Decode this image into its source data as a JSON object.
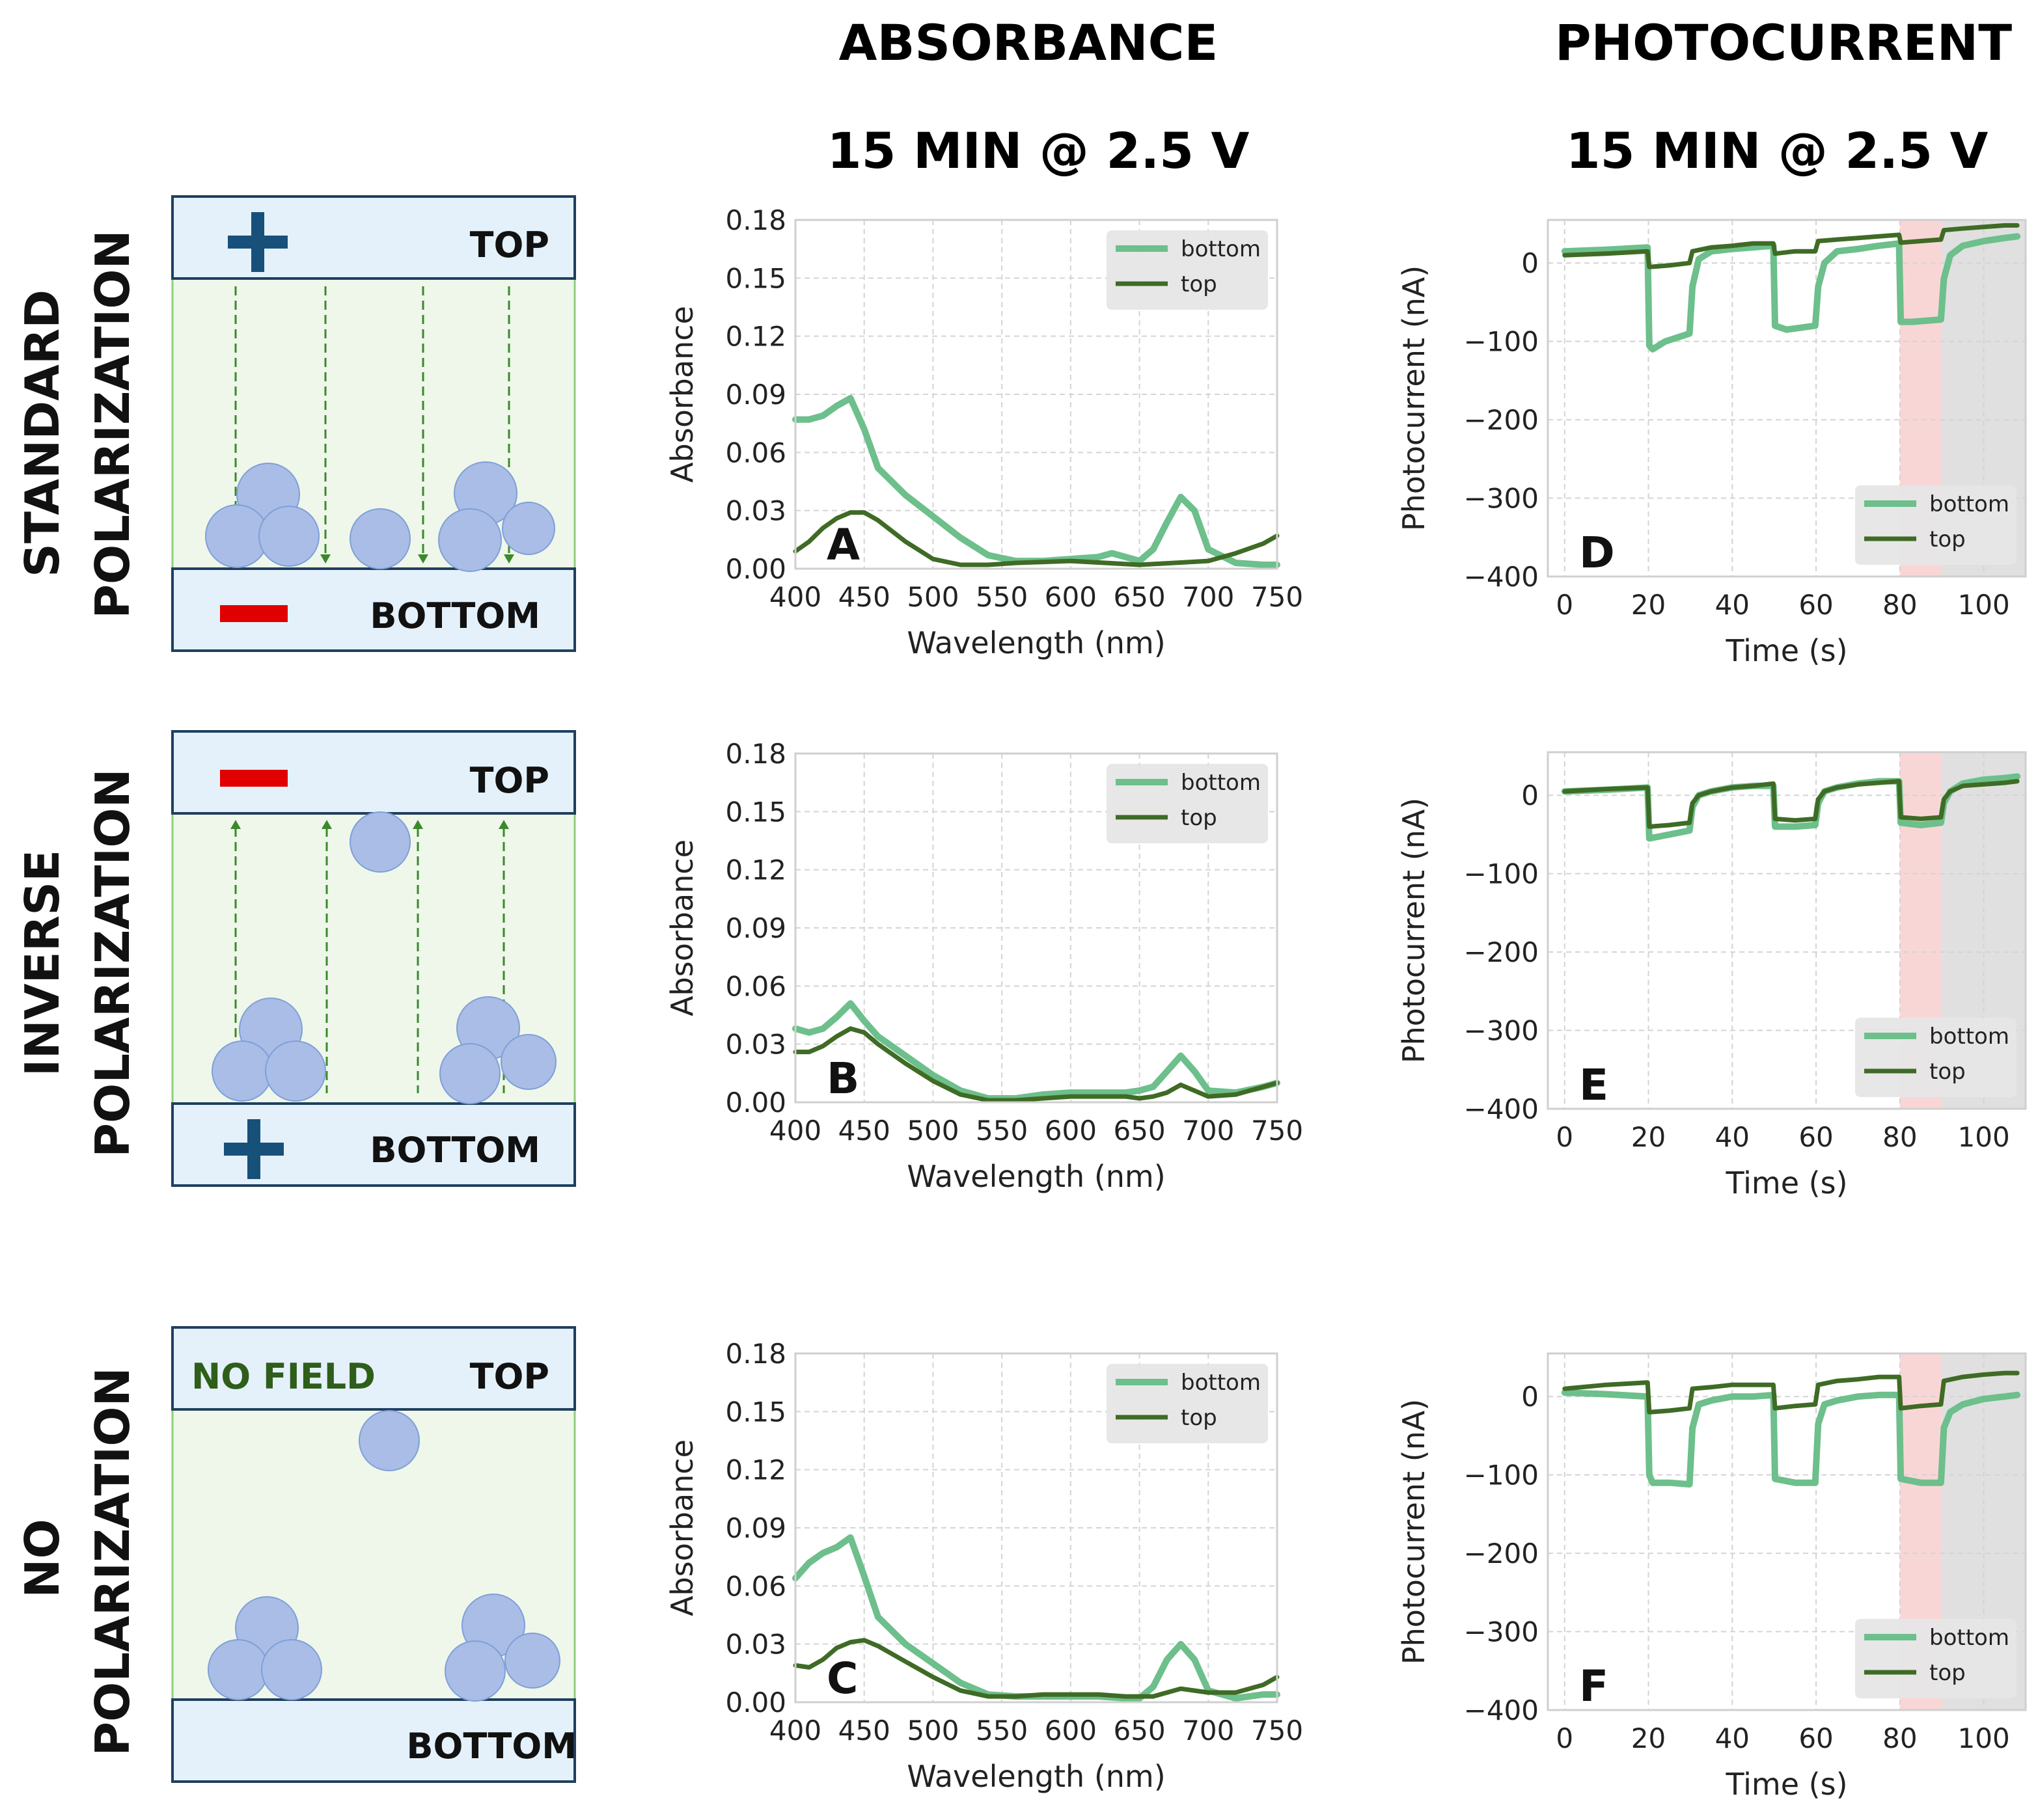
{
  "column_headers": {
    "absorbance_title": "ABSORBANCE",
    "absorbance_sub": "15 MIN @ 2.5 V",
    "photocurrent_title": "PHOTOCURRENT",
    "photocurrent_sub": "15 MIN @ 2.5 V"
  },
  "rows": [
    {
      "label_line1": "STANDARD",
      "label_line2": "POLARIZATION",
      "top_label": "TOP",
      "bottom_label": "BOTTOM",
      "top_sign": "+",
      "bottom_sign": "−",
      "field_direction": "down",
      "no_field_label": ""
    },
    {
      "label_line1": "INVERSE",
      "label_line2": "POLARIZATION",
      "top_label": "TOP",
      "bottom_label": "BOTTOM",
      "top_sign": "−",
      "bottom_sign": "+",
      "field_direction": "up",
      "no_field_label": ""
    },
    {
      "label_line1": "NO",
      "label_line2": "POLARIZATION",
      "top_label": "TOP",
      "bottom_label": "BOTTOM",
      "top_sign": "",
      "bottom_sign": "",
      "field_direction": "none",
      "no_field_label": "NO FIELD"
    }
  ],
  "colors": {
    "bottom_series": "#6dbf8b",
    "top_series": "#3f6b25",
    "schematic_fill": "#eef7ea",
    "electrode_fill": "#e4f1fa",
    "plus_sign": "#17517a",
    "minus_sign": "#e00000",
    "no_field_text": "#2e5e1a",
    "light_window": "#f9d6d6",
    "dark_window": "#e0e0e0"
  },
  "chart_data": [
    {
      "id": "A",
      "type": "line",
      "panel_letter": "A",
      "xlabel": "Wavelength (nm)",
      "ylabel": "Absorbance",
      "xlim": [
        400,
        750
      ],
      "ylim": [
        0,
        0.18
      ],
      "xticks": [
        400,
        450,
        500,
        550,
        600,
        650,
        700,
        750
      ],
      "yticks": [
        0.0,
        0.03,
        0.06,
        0.09,
        0.12,
        0.15,
        0.18
      ],
      "ytick_labels": [
        "0.00",
        "0.03",
        "0.06",
        "0.09",
        "0.12",
        "0.15",
        "0.18"
      ],
      "legend": {
        "position": "top-right",
        "entries": [
          "bottom",
          "top"
        ]
      },
      "series": [
        {
          "name": "bottom",
          "x": [
            400,
            410,
            420,
            430,
            440,
            450,
            460,
            480,
            500,
            520,
            540,
            560,
            580,
            600,
            620,
            630,
            640,
            650,
            660,
            670,
            680,
            690,
            700,
            720,
            740,
            750
          ],
          "y": [
            0.077,
            0.077,
            0.079,
            0.084,
            0.088,
            0.072,
            0.052,
            0.038,
            0.027,
            0.016,
            0.007,
            0.004,
            0.004,
            0.005,
            0.006,
            0.008,
            0.006,
            0.004,
            0.01,
            0.024,
            0.037,
            0.03,
            0.01,
            0.003,
            0.002,
            0.002
          ]
        },
        {
          "name": "top",
          "x": [
            400,
            410,
            420,
            430,
            440,
            450,
            460,
            480,
            500,
            520,
            540,
            560,
            600,
            650,
            700,
            720,
            740,
            750
          ],
          "y": [
            0.009,
            0.014,
            0.021,
            0.026,
            0.029,
            0.029,
            0.025,
            0.014,
            0.005,
            0.002,
            0.002,
            0.003,
            0.004,
            0.002,
            0.004,
            0.008,
            0.013,
            0.017
          ]
        }
      ]
    },
    {
      "id": "B",
      "type": "line",
      "panel_letter": "B",
      "xlabel": "Wavelength (nm)",
      "ylabel": "Absorbance",
      "xlim": [
        400,
        750
      ],
      "ylim": [
        0,
        0.18
      ],
      "xticks": [
        400,
        450,
        500,
        550,
        600,
        650,
        700,
        750
      ],
      "yticks": [
        0.0,
        0.03,
        0.06,
        0.09,
        0.12,
        0.15,
        0.18
      ],
      "ytick_labels": [
        "0.00",
        "0.03",
        "0.06",
        "0.09",
        "0.12",
        "0.15",
        "0.18"
      ],
      "legend": {
        "position": "top-right",
        "entries": [
          "bottom",
          "top"
        ]
      },
      "series": [
        {
          "name": "bottom",
          "x": [
            400,
            410,
            420,
            430,
            440,
            450,
            460,
            480,
            500,
            520,
            540,
            560,
            580,
            600,
            620,
            640,
            650,
            660,
            670,
            680,
            690,
            700,
            720,
            740,
            750
          ],
          "y": [
            0.038,
            0.036,
            0.038,
            0.044,
            0.051,
            0.042,
            0.034,
            0.024,
            0.014,
            0.006,
            0.002,
            0.002,
            0.004,
            0.005,
            0.005,
            0.005,
            0.006,
            0.008,
            0.016,
            0.024,
            0.016,
            0.006,
            0.005,
            0.008,
            0.01
          ]
        },
        {
          "name": "top",
          "x": [
            400,
            410,
            420,
            430,
            440,
            450,
            460,
            480,
            500,
            520,
            540,
            560,
            580,
            600,
            620,
            640,
            650,
            660,
            670,
            680,
            690,
            700,
            720,
            740,
            750
          ],
          "y": [
            0.026,
            0.026,
            0.029,
            0.034,
            0.038,
            0.036,
            0.03,
            0.02,
            0.011,
            0.004,
            0.001,
            0.001,
            0.002,
            0.003,
            0.003,
            0.003,
            0.002,
            0.003,
            0.005,
            0.009,
            0.006,
            0.003,
            0.004,
            0.008,
            0.01
          ]
        }
      ]
    },
    {
      "id": "C",
      "type": "line",
      "panel_letter": "C",
      "xlabel": "Wavelength (nm)",
      "ylabel": "Absorbance",
      "xlim": [
        400,
        750
      ],
      "ylim": [
        0,
        0.18
      ],
      "xticks": [
        400,
        450,
        500,
        550,
        600,
        650,
        700,
        750
      ],
      "yticks": [
        0.0,
        0.03,
        0.06,
        0.09,
        0.12,
        0.15,
        0.18
      ],
      "ytick_labels": [
        "0.00",
        "0.03",
        "0.06",
        "0.09",
        "0.12",
        "0.15",
        "0.18"
      ],
      "legend": {
        "position": "top-right",
        "entries": [
          "bottom",
          "top"
        ]
      },
      "series": [
        {
          "name": "bottom",
          "x": [
            400,
            410,
            420,
            430,
            440,
            450,
            460,
            480,
            500,
            520,
            540,
            560,
            580,
            600,
            620,
            640,
            650,
            660,
            670,
            680,
            690,
            700,
            720,
            740,
            750
          ],
          "y": [
            0.064,
            0.072,
            0.077,
            0.08,
            0.085,
            0.065,
            0.044,
            0.03,
            0.02,
            0.01,
            0.004,
            0.003,
            0.003,
            0.003,
            0.003,
            0.002,
            0.002,
            0.008,
            0.022,
            0.03,
            0.022,
            0.006,
            0.002,
            0.004,
            0.004
          ]
        },
        {
          "name": "top",
          "x": [
            400,
            410,
            420,
            430,
            440,
            450,
            460,
            480,
            500,
            520,
            540,
            560,
            580,
            600,
            620,
            640,
            650,
            660,
            670,
            680,
            690,
            700,
            720,
            740,
            750
          ],
          "y": [
            0.019,
            0.018,
            0.022,
            0.028,
            0.031,
            0.032,
            0.029,
            0.021,
            0.013,
            0.006,
            0.003,
            0.003,
            0.004,
            0.004,
            0.004,
            0.003,
            0.003,
            0.003,
            0.005,
            0.007,
            0.006,
            0.005,
            0.005,
            0.009,
            0.013
          ]
        }
      ]
    },
    {
      "id": "D",
      "type": "line",
      "panel_letter": "D",
      "xlabel": "Time (s)",
      "ylabel": "Photocurrent (nA)",
      "xlim": [
        -4,
        110
      ],
      "ylim": [
        -400,
        55
      ],
      "xticks": [
        0,
        20,
        40,
        60,
        80,
        100
      ],
      "yticks": [
        -400,
        -300,
        -200,
        -100,
        0
      ],
      "ytick_labels": [
        "−400",
        "−300",
        "−200",
        "−100",
        "0"
      ],
      "shaded": [
        {
          "x0": 80,
          "x1": 90,
          "kind": "light"
        },
        {
          "x0": 90,
          "x1": 110,
          "kind": "dark"
        }
      ],
      "legend": {
        "position": "bottom-right",
        "entries": [
          "bottom",
          "top"
        ]
      },
      "series": [
        {
          "name": "bottom",
          "x": [
            0,
            10,
            19.8,
            20.2,
            21,
            24,
            29.8,
            30.5,
            32,
            35,
            40,
            45,
            49.8,
            50.2,
            53,
            59.8,
            60.5,
            62,
            65,
            70,
            75,
            79.8,
            80.2,
            83,
            89.8,
            90.5,
            92,
            95,
            100,
            105,
            108
          ],
          "y": [
            15,
            17,
            20,
            -105,
            -110,
            -100,
            -90,
            -30,
            5,
            15,
            18,
            20,
            22,
            -80,
            -85,
            -80,
            -30,
            0,
            15,
            18,
            22,
            25,
            -75,
            -75,
            -72,
            -20,
            10,
            22,
            28,
            32,
            34
          ]
        },
        {
          "name": "top",
          "x": [
            0,
            10,
            19.8,
            20.2,
            25,
            29.8,
            30.5,
            35,
            40,
            45,
            49.8,
            50.2,
            55,
            59.8,
            60.5,
            65,
            70,
            75,
            79.8,
            80.2,
            85,
            89.8,
            90.5,
            95,
            100,
            105,
            108
          ],
          "y": [
            10,
            12,
            15,
            -5,
            -3,
            0,
            15,
            20,
            22,
            25,
            25,
            12,
            15,
            15,
            28,
            30,
            32,
            34,
            36,
            26,
            28,
            30,
            42,
            44,
            46,
            48,
            48
          ]
        }
      ]
    },
    {
      "id": "E",
      "type": "line",
      "panel_letter": "E",
      "xlabel": "Time (s)",
      "ylabel": "Photocurrent (nA)",
      "xlim": [
        -4,
        110
      ],
      "ylim": [
        -400,
        55
      ],
      "xticks": [
        0,
        20,
        40,
        60,
        80,
        100
      ],
      "yticks": [
        -400,
        -300,
        -200,
        -100,
        0
      ],
      "ytick_labels": [
        "−400",
        "−300",
        "−200",
        "−100",
        "0"
      ],
      "shaded": [
        {
          "x0": 80,
          "x1": 90,
          "kind": "light"
        },
        {
          "x0": 90,
          "x1": 110,
          "kind": "dark"
        }
      ],
      "legend": {
        "position": "bottom-right",
        "entries": [
          "bottom",
          "top"
        ]
      },
      "series": [
        {
          "name": "bottom",
          "x": [
            0,
            10,
            19.8,
            20.2,
            25,
            29.8,
            30.5,
            32,
            35,
            40,
            45,
            49.8,
            50.2,
            55,
            59.8,
            60.5,
            62,
            65,
            70,
            75,
            79.8,
            80.2,
            85,
            89.8,
            90.5,
            92,
            95,
            100,
            105,
            108
          ],
          "y": [
            5,
            7,
            10,
            -55,
            -50,
            -45,
            -15,
            0,
            5,
            10,
            12,
            12,
            -40,
            -40,
            -38,
            -10,
            5,
            10,
            15,
            18,
            18,
            -35,
            -38,
            -35,
            -10,
            5,
            15,
            20,
            22,
            24
          ]
        },
        {
          "name": "top",
          "x": [
            0,
            10,
            19.8,
            20.2,
            25,
            29.8,
            30.5,
            32,
            35,
            40,
            45,
            49.8,
            50.2,
            55,
            59.8,
            60.5,
            62,
            65,
            70,
            75,
            79.8,
            80.2,
            85,
            89.8,
            90.5,
            92,
            95,
            100,
            105,
            108
          ],
          "y": [
            5,
            8,
            10,
            -40,
            -38,
            -35,
            -10,
            0,
            5,
            10,
            12,
            15,
            -30,
            -32,
            -30,
            -5,
            5,
            10,
            14,
            16,
            18,
            -28,
            -30,
            -28,
            -5,
            5,
            12,
            14,
            16,
            18
          ]
        }
      ]
    },
    {
      "id": "F",
      "type": "line",
      "panel_letter": "F",
      "xlabel": "Time (s)",
      "ylabel": "Photocurrent (nA)",
      "xlim": [
        -4,
        110
      ],
      "ylim": [
        -400,
        55
      ],
      "xticks": [
        0,
        20,
        40,
        60,
        80,
        100
      ],
      "yticks": [
        -400,
        -300,
        -200,
        -100,
        0
      ],
      "ytick_labels": [
        "−400",
        "−300",
        "−200",
        "−100",
        "0"
      ],
      "shaded": [
        {
          "x0": 80,
          "x1": 90,
          "kind": "light"
        },
        {
          "x0": 90,
          "x1": 110,
          "kind": "dark"
        }
      ],
      "legend": {
        "position": "bottom-right",
        "entries": [
          "bottom",
          "top"
        ]
      },
      "series": [
        {
          "name": "bottom",
          "x": [
            0,
            10,
            19.8,
            20.2,
            21,
            25,
            29.8,
            30.5,
            32,
            35,
            40,
            45,
            49.8,
            50.2,
            55,
            59.8,
            60.5,
            62,
            65,
            70,
            75,
            79.8,
            80.2,
            85,
            89.8,
            90.5,
            92,
            95,
            100,
            105,
            108
          ],
          "y": [
            5,
            3,
            0,
            -100,
            -110,
            -110,
            -112,
            -40,
            -10,
            -5,
            0,
            0,
            2,
            -105,
            -110,
            -110,
            -35,
            -10,
            -5,
            0,
            2,
            2,
            -105,
            -110,
            -110,
            -40,
            -20,
            -10,
            -3,
            0,
            2
          ]
        },
        {
          "name": "top",
          "x": [
            0,
            10,
            19.8,
            20.2,
            25,
            29.8,
            30.5,
            35,
            40,
            45,
            49.8,
            50.2,
            55,
            59.8,
            60.5,
            65,
            70,
            75,
            79.8,
            80.2,
            85,
            89.8,
            90.5,
            95,
            100,
            105,
            108
          ],
          "y": [
            10,
            15,
            18,
            -20,
            -18,
            -15,
            10,
            12,
            15,
            15,
            15,
            -15,
            -12,
            -10,
            15,
            20,
            22,
            25,
            25,
            -15,
            -12,
            -10,
            20,
            25,
            28,
            30,
            30
          ]
        }
      ]
    }
  ]
}
